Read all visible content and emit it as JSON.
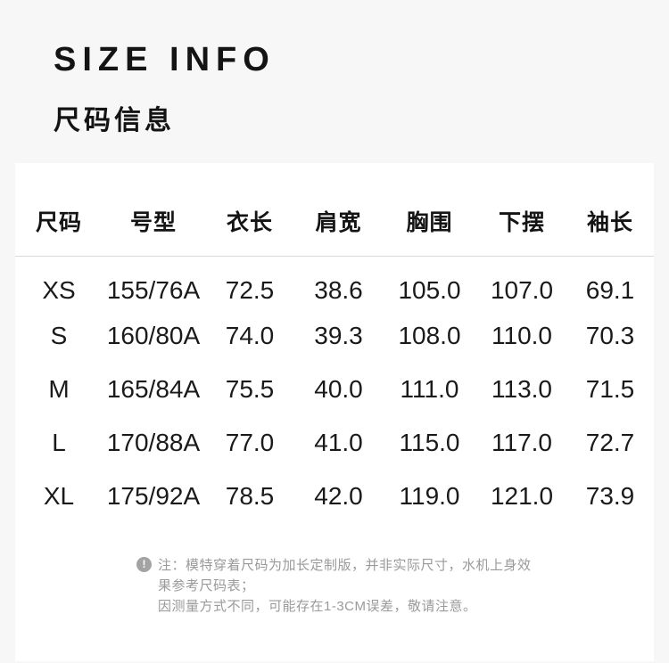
{
  "colors": {
    "background": "#f7f7f7",
    "panel": "#ffffff",
    "text": "#141414",
    "divider": "#d9d9d9",
    "note_text": "#9a9a9a",
    "note_icon_bg": "#a3a3a3"
  },
  "header": {
    "title": "SIZE INFO",
    "subtitle": "尺码信息"
  },
  "chart_data": {
    "type": "table",
    "title": "SIZE INFO 尺码信息",
    "columns": [
      "尺码",
      "号型",
      "衣长",
      "肩宽",
      "胸围",
      "下摆",
      "袖长"
    ],
    "rows": [
      [
        "XS",
        "155/76A",
        "72.5",
        "38.6",
        "105.0",
        "107.0",
        "69.1"
      ],
      [
        "S",
        "160/80A",
        "74.0",
        "39.3",
        "108.0",
        "110.0",
        "70.3"
      ],
      [
        "M",
        "165/84A",
        "75.5",
        "40.0",
        "111.0",
        "113.0",
        "71.5"
      ],
      [
        "L",
        "170/88A",
        "77.0",
        "41.0",
        "115.0",
        "117.0",
        "72.7"
      ],
      [
        "XL",
        "175/92A",
        "78.5",
        "42.0",
        "119.0",
        "121.0",
        "73.9"
      ]
    ]
  },
  "note": {
    "icon_glyph": "!",
    "line1": "注：模特穿着尺码为加长定制版，并非实际尺寸，水机上身效果参考尺码表；",
    "line2": "因测量方式不同，可能存在1-3CM误差，敬请注意。"
  }
}
